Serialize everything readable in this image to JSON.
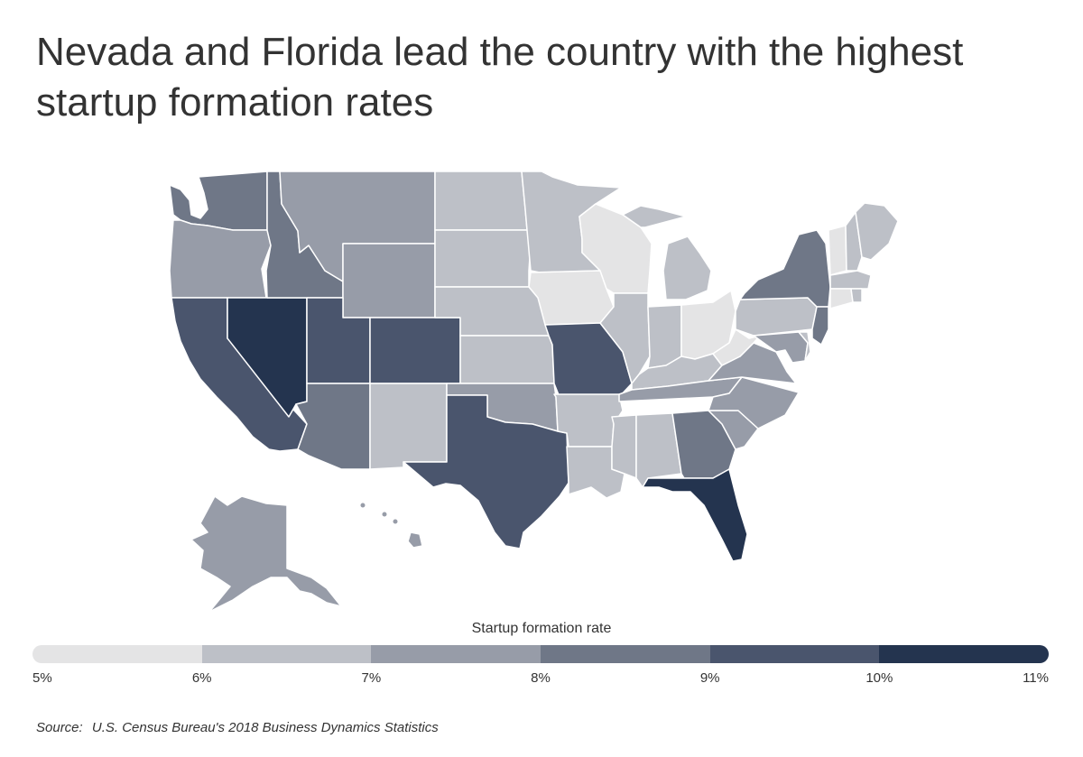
{
  "title": "Nevada and Florida lead the country with the highest startup formation rates",
  "legend": {
    "title": "Startup formation rate",
    "ticks": [
      "5%",
      "6%",
      "7%",
      "8%",
      "9%",
      "10%",
      "11%"
    ],
    "colors": [
      "#e4e4e5",
      "#bdc0c7",
      "#979ca8",
      "#6f7787",
      "#4a556d",
      "#24344f"
    ]
  },
  "source": {
    "label": "Source:",
    "text": "U.S. Census Bureau's 2018 Business Dynamics Statistics"
  },
  "map_data": {
    "type": "choropleth",
    "region": "United States",
    "states": [
      {
        "name": "Washington",
        "bin": 3
      },
      {
        "name": "Oregon",
        "bin": 2
      },
      {
        "name": "California",
        "bin": 4
      },
      {
        "name": "Nevada",
        "bin": 5
      },
      {
        "name": "Idaho",
        "bin": 3
      },
      {
        "name": "Montana",
        "bin": 2
      },
      {
        "name": "Wyoming",
        "bin": 2
      },
      {
        "name": "Utah",
        "bin": 4
      },
      {
        "name": "Colorado",
        "bin": 4
      },
      {
        "name": "Arizona",
        "bin": 3
      },
      {
        "name": "New Mexico",
        "bin": 1
      },
      {
        "name": "North Dakota",
        "bin": 1
      },
      {
        "name": "South Dakota",
        "bin": 1
      },
      {
        "name": "Nebraska",
        "bin": 1
      },
      {
        "name": "Kansas",
        "bin": 1
      },
      {
        "name": "Oklahoma",
        "bin": 2
      },
      {
        "name": "Texas",
        "bin": 4
      },
      {
        "name": "Minnesota",
        "bin": 1
      },
      {
        "name": "Iowa",
        "bin": 0
      },
      {
        "name": "Missouri",
        "bin": 4
      },
      {
        "name": "Arkansas",
        "bin": 1
      },
      {
        "name": "Louisiana",
        "bin": 1
      },
      {
        "name": "Wisconsin",
        "bin": 0
      },
      {
        "name": "Illinois",
        "bin": 1
      },
      {
        "name": "Michigan",
        "bin": 1
      },
      {
        "name": "Indiana",
        "bin": 1
      },
      {
        "name": "Ohio",
        "bin": 0
      },
      {
        "name": "Kentucky",
        "bin": 1
      },
      {
        "name": "Tennessee",
        "bin": 2
      },
      {
        "name": "Mississippi",
        "bin": 1
      },
      {
        "name": "Alabama",
        "bin": 1
      },
      {
        "name": "Georgia",
        "bin": 3
      },
      {
        "name": "Florida",
        "bin": 5
      },
      {
        "name": "South Carolina",
        "bin": 2
      },
      {
        "name": "North Carolina",
        "bin": 2
      },
      {
        "name": "Virginia",
        "bin": 2
      },
      {
        "name": "West Virginia",
        "bin": 0
      },
      {
        "name": "Pennsylvania",
        "bin": 1
      },
      {
        "name": "New York",
        "bin": 3
      },
      {
        "name": "New Jersey",
        "bin": 3
      },
      {
        "name": "Maryland",
        "bin": 2
      },
      {
        "name": "Delaware",
        "bin": 1
      },
      {
        "name": "Vermont",
        "bin": 0
      },
      {
        "name": "New Hampshire",
        "bin": 1
      },
      {
        "name": "Maine",
        "bin": 1
      },
      {
        "name": "Massachusetts",
        "bin": 1
      },
      {
        "name": "Connecticut",
        "bin": 0
      },
      {
        "name": "Rhode Island",
        "bin": 1
      },
      {
        "name": "Alaska",
        "bin": 2
      },
      {
        "name": "Hawaii",
        "bin": 2
      }
    ]
  }
}
